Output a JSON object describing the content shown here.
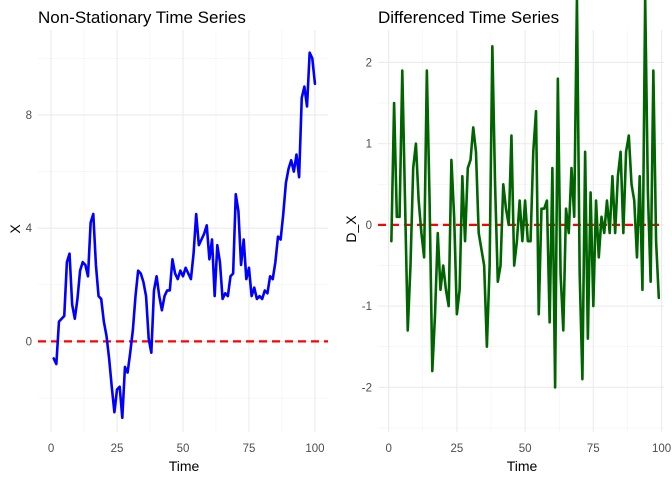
{
  "chart_data": [
    {
      "type": "line",
      "title": "Non-Stationary Time Series",
      "xlabel": "Time",
      "ylabel": "X",
      "xlim": [
        -4.95,
        104.95
      ],
      "ylim": [
        -3.2,
        11.0
      ],
      "x_ticks": [
        0,
        25,
        50,
        75,
        100
      ],
      "x_tick_labels": [
        "0",
        "25",
        "50",
        "75",
        "100"
      ],
      "y_ticks": [
        0,
        4,
        8
      ],
      "y_tick_labels": [
        "0",
        "4",
        "8"
      ],
      "grid": true,
      "line_color": "#0000ff",
      "hline": {
        "y": 0,
        "color": "#ff0000",
        "style": "dashed"
      },
      "series": [
        {
          "x": [
            1,
            2,
            3,
            4,
            5,
            6,
            7,
            8,
            9,
            10,
            11,
            12,
            13,
            14,
            15,
            16,
            17,
            18,
            19,
            20,
            21,
            22,
            23,
            24,
            25,
            26,
            27,
            28,
            29,
            30,
            31,
            32,
            33,
            34,
            35,
            36,
            37,
            38,
            39,
            40,
            41,
            42,
            43,
            44,
            45,
            46,
            47,
            48,
            49,
            50,
            51,
            52,
            53,
            54,
            55,
            56,
            57,
            58,
            59,
            60,
            61,
            62,
            63,
            64,
            65,
            66,
            67,
            68,
            69,
            70,
            71,
            72,
            73,
            74,
            75,
            76,
            77,
            78,
            79,
            80,
            81,
            82,
            83,
            84,
            85,
            86,
            87,
            88,
            89,
            90,
            91,
            92,
            93,
            94,
            95,
            96,
            97,
            98,
            99,
            100
          ],
          "values": [
            -0.6,
            -0.8,
            0.7,
            0.8,
            0.9,
            2.8,
            3.1,
            1.3,
            0.8,
            1.5,
            2.5,
            2.8,
            2.7,
            2.3,
            4.2,
            4.5,
            2.7,
            1.6,
            1.5,
            0.7,
            0.2,
            -0.6,
            -1.6,
            -2.5,
            -1.7,
            -1.6,
            -2.7,
            -0.9,
            -1.1,
            -0.4,
            0.4,
            1.6,
            2.5,
            2.4,
            2.1,
            1.6,
            0.1,
            -0.4,
            1.8,
            2.3,
            1.6,
            1.1,
            1.6,
            1.8,
            1.8,
            2.9,
            2.4,
            2.2,
            2.5,
            2.3,
            2.6,
            2.4,
            2.2,
            3.1,
            4.5,
            3.4,
            3.6,
            3.8,
            4.1,
            2.9,
            3.6,
            1.6,
            3.4,
            2.8,
            1.5,
            1.7,
            1.6,
            2.3,
            2.4,
            5.2,
            4.6,
            2.7,
            3.6,
            2.2,
            2.6,
            1.6,
            1.9,
            1.5,
            1.6,
            1.5,
            1.8,
            1.7,
            2.3,
            2.2,
            2.8,
            3.7,
            3.6,
            4.5,
            5.6,
            6.1,
            6.4,
            6.0,
            6.6,
            5.8,
            8.6,
            9.0,
            8.3,
            10.2,
            10.0,
            9.1
          ]
        }
      ]
    },
    {
      "type": "line",
      "title": "Differenced Time Series",
      "xlabel": "Time",
      "ylabel": "D_X",
      "xlim": [
        -3.9,
        100.9
      ],
      "ylim": [
        -2.55,
        2.4
      ],
      "x_ticks": [
        0,
        25,
        50,
        75,
        100
      ],
      "x_tick_labels": [
        "0",
        "25",
        "50",
        "75",
        "100"
      ],
      "y_ticks": [
        -2,
        -1,
        0,
        1,
        2
      ],
      "y_tick_labels": [
        "-2",
        "-1",
        "0",
        "1",
        "2"
      ],
      "grid": true,
      "line_color": "#006400",
      "hline": {
        "y": 0,
        "color": "#ff0000",
        "style": "dashed"
      },
      "series": [
        {
          "x": [
            1,
            2,
            3,
            4,
            5,
            6,
            7,
            8,
            9,
            10,
            11,
            12,
            13,
            14,
            15,
            16,
            17,
            18,
            19,
            20,
            21,
            22,
            23,
            24,
            25,
            26,
            27,
            28,
            29,
            30,
            31,
            32,
            33,
            34,
            35,
            36,
            37,
            38,
            39,
            40,
            41,
            42,
            43,
            44,
            45,
            46,
            47,
            48,
            49,
            50,
            51,
            52,
            53,
            54,
            55,
            56,
            57,
            58,
            59,
            60,
            61,
            62,
            63,
            64,
            65,
            66,
            67,
            68,
            69,
            70,
            71,
            72,
            73,
            74,
            75,
            76,
            77,
            78,
            79,
            80,
            81,
            82,
            83,
            84,
            85,
            86,
            87,
            88,
            89,
            90,
            91,
            92,
            93,
            94,
            95,
            96,
            97,
            98,
            99
          ],
          "values": [
            -0.2,
            1.5,
            0.1,
            0.1,
            1.9,
            0.3,
            -1.3,
            -0.5,
            0.7,
            1.0,
            0.3,
            -0.1,
            -0.4,
            1.9,
            0.3,
            -1.8,
            -1.1,
            -0.1,
            -0.8,
            -0.5,
            -0.8,
            -1.0,
            0.8,
            0.1,
            -1.1,
            -0.8,
            0.6,
            -0.2,
            0.7,
            0.8,
            1.2,
            0.9,
            -0.1,
            -0.3,
            -0.5,
            -1.5,
            -0.5,
            2.2,
            0.5,
            -0.7,
            -0.5,
            0.5,
            0.2,
            0.0,
            1.1,
            -0.5,
            -0.2,
            0.3,
            -0.2,
            0.3,
            -0.2,
            -0.2,
            0.9,
            1.4,
            -1.1,
            0.2,
            0.2,
            0.3,
            -1.2,
            0.7,
            -2.0,
            1.8,
            -0.6,
            -1.3,
            0.2,
            -0.1,
            0.7,
            0.1,
            2.8,
            -0.6,
            -1.9,
            0.9,
            -1.4,
            0.4,
            -1.0,
            0.3,
            -0.4,
            0.1,
            -0.1,
            0.3,
            -0.1,
            0.6,
            -0.1,
            0.6,
            0.9,
            -0.1,
            0.9,
            1.1,
            0.5,
            0.3,
            -0.4,
            0.6,
            -0.8,
            2.8,
            0.4,
            -0.7,
            1.9,
            -0.2,
            -0.9
          ]
        }
      ]
    }
  ]
}
